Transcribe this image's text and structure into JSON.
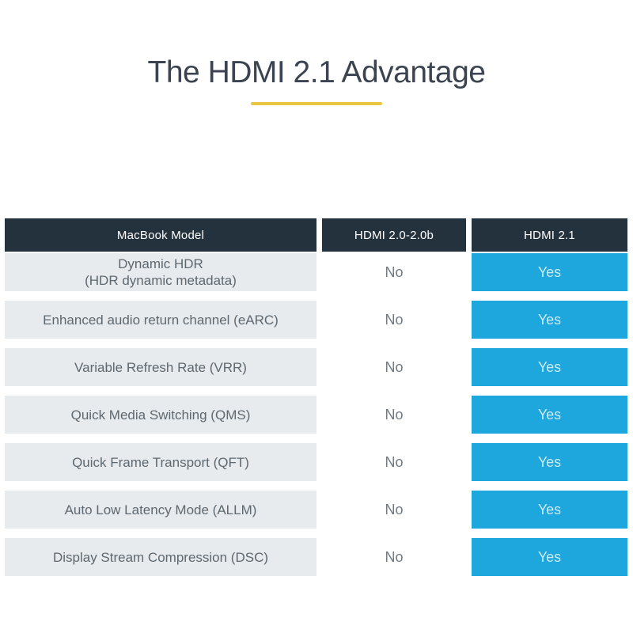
{
  "title": {
    "text": "The HDMI 2.1 Advantage"
  },
  "colors": {
    "title_color": "#3b4450",
    "underline_color": "#e9c43e",
    "header_bg": "#24323e",
    "header_text": "#ffffff",
    "row_bg": "#e7ebee",
    "feature_text": "#5e6870",
    "no_text": "#6e7982",
    "yes_bg": "#1da7dc",
    "yes_text": "#cdecf7"
  },
  "table": {
    "columns": [
      {
        "label": "MacBook Model"
      },
      {
        "label": "HDMI 2.0-2.0b"
      },
      {
        "label": "HDMI 2.1"
      }
    ],
    "rows": [
      {
        "feature": "Dynamic HDR\n(HDR dynamic metadata)",
        "hdmi_20": "No",
        "hdmi_21": "Yes"
      },
      {
        "feature": "Enhanced audio return channel (eARC)",
        "hdmi_20": "No",
        "hdmi_21": "Yes"
      },
      {
        "feature": "Variable Refresh Rate (VRR)",
        "hdmi_20": "No",
        "hdmi_21": "Yes"
      },
      {
        "feature": "Quick Media Switching (QMS)",
        "hdmi_20": "No",
        "hdmi_21": "Yes"
      },
      {
        "feature": "Quick Frame Transport (QFT)",
        "hdmi_20": "No",
        "hdmi_21": "Yes"
      },
      {
        "feature": "Auto Low Latency Mode (ALLM)",
        "hdmi_20": "No",
        "hdmi_21": "Yes"
      },
      {
        "feature": "Display Stream Compression (DSC)",
        "hdmi_20": "No",
        "hdmi_21": "Yes"
      }
    ]
  },
  "chart_data": {
    "type": "table",
    "title": "The HDMI 2.1 Advantage",
    "columns": [
      "MacBook Model",
      "HDMI 2.0-2.0b",
      "HDMI 2.1"
    ],
    "categories": [
      "Dynamic HDR (HDR dynamic metadata)",
      "Enhanced audio return channel (eARC)",
      "Variable Refresh Rate (VRR)",
      "Quick Media Switching (QMS)",
      "Quick Frame Transport (QFT)",
      "Auto Low Latency Mode (ALLM)",
      "Display Stream Compression (DSC)"
    ],
    "series": [
      {
        "name": "HDMI 2.0-2.0b",
        "values": [
          "No",
          "No",
          "No",
          "No",
          "No",
          "No",
          "No"
        ]
      },
      {
        "name": "HDMI 2.1",
        "values": [
          "Yes",
          "Yes",
          "Yes",
          "Yes",
          "Yes",
          "Yes",
          "Yes"
        ]
      }
    ],
    "layout_hints": {
      "highlight_column": "HDMI 2.1",
      "highlight_style": "cyan filled cells",
      "header_style": "dark navy bar with white text"
    }
  }
}
